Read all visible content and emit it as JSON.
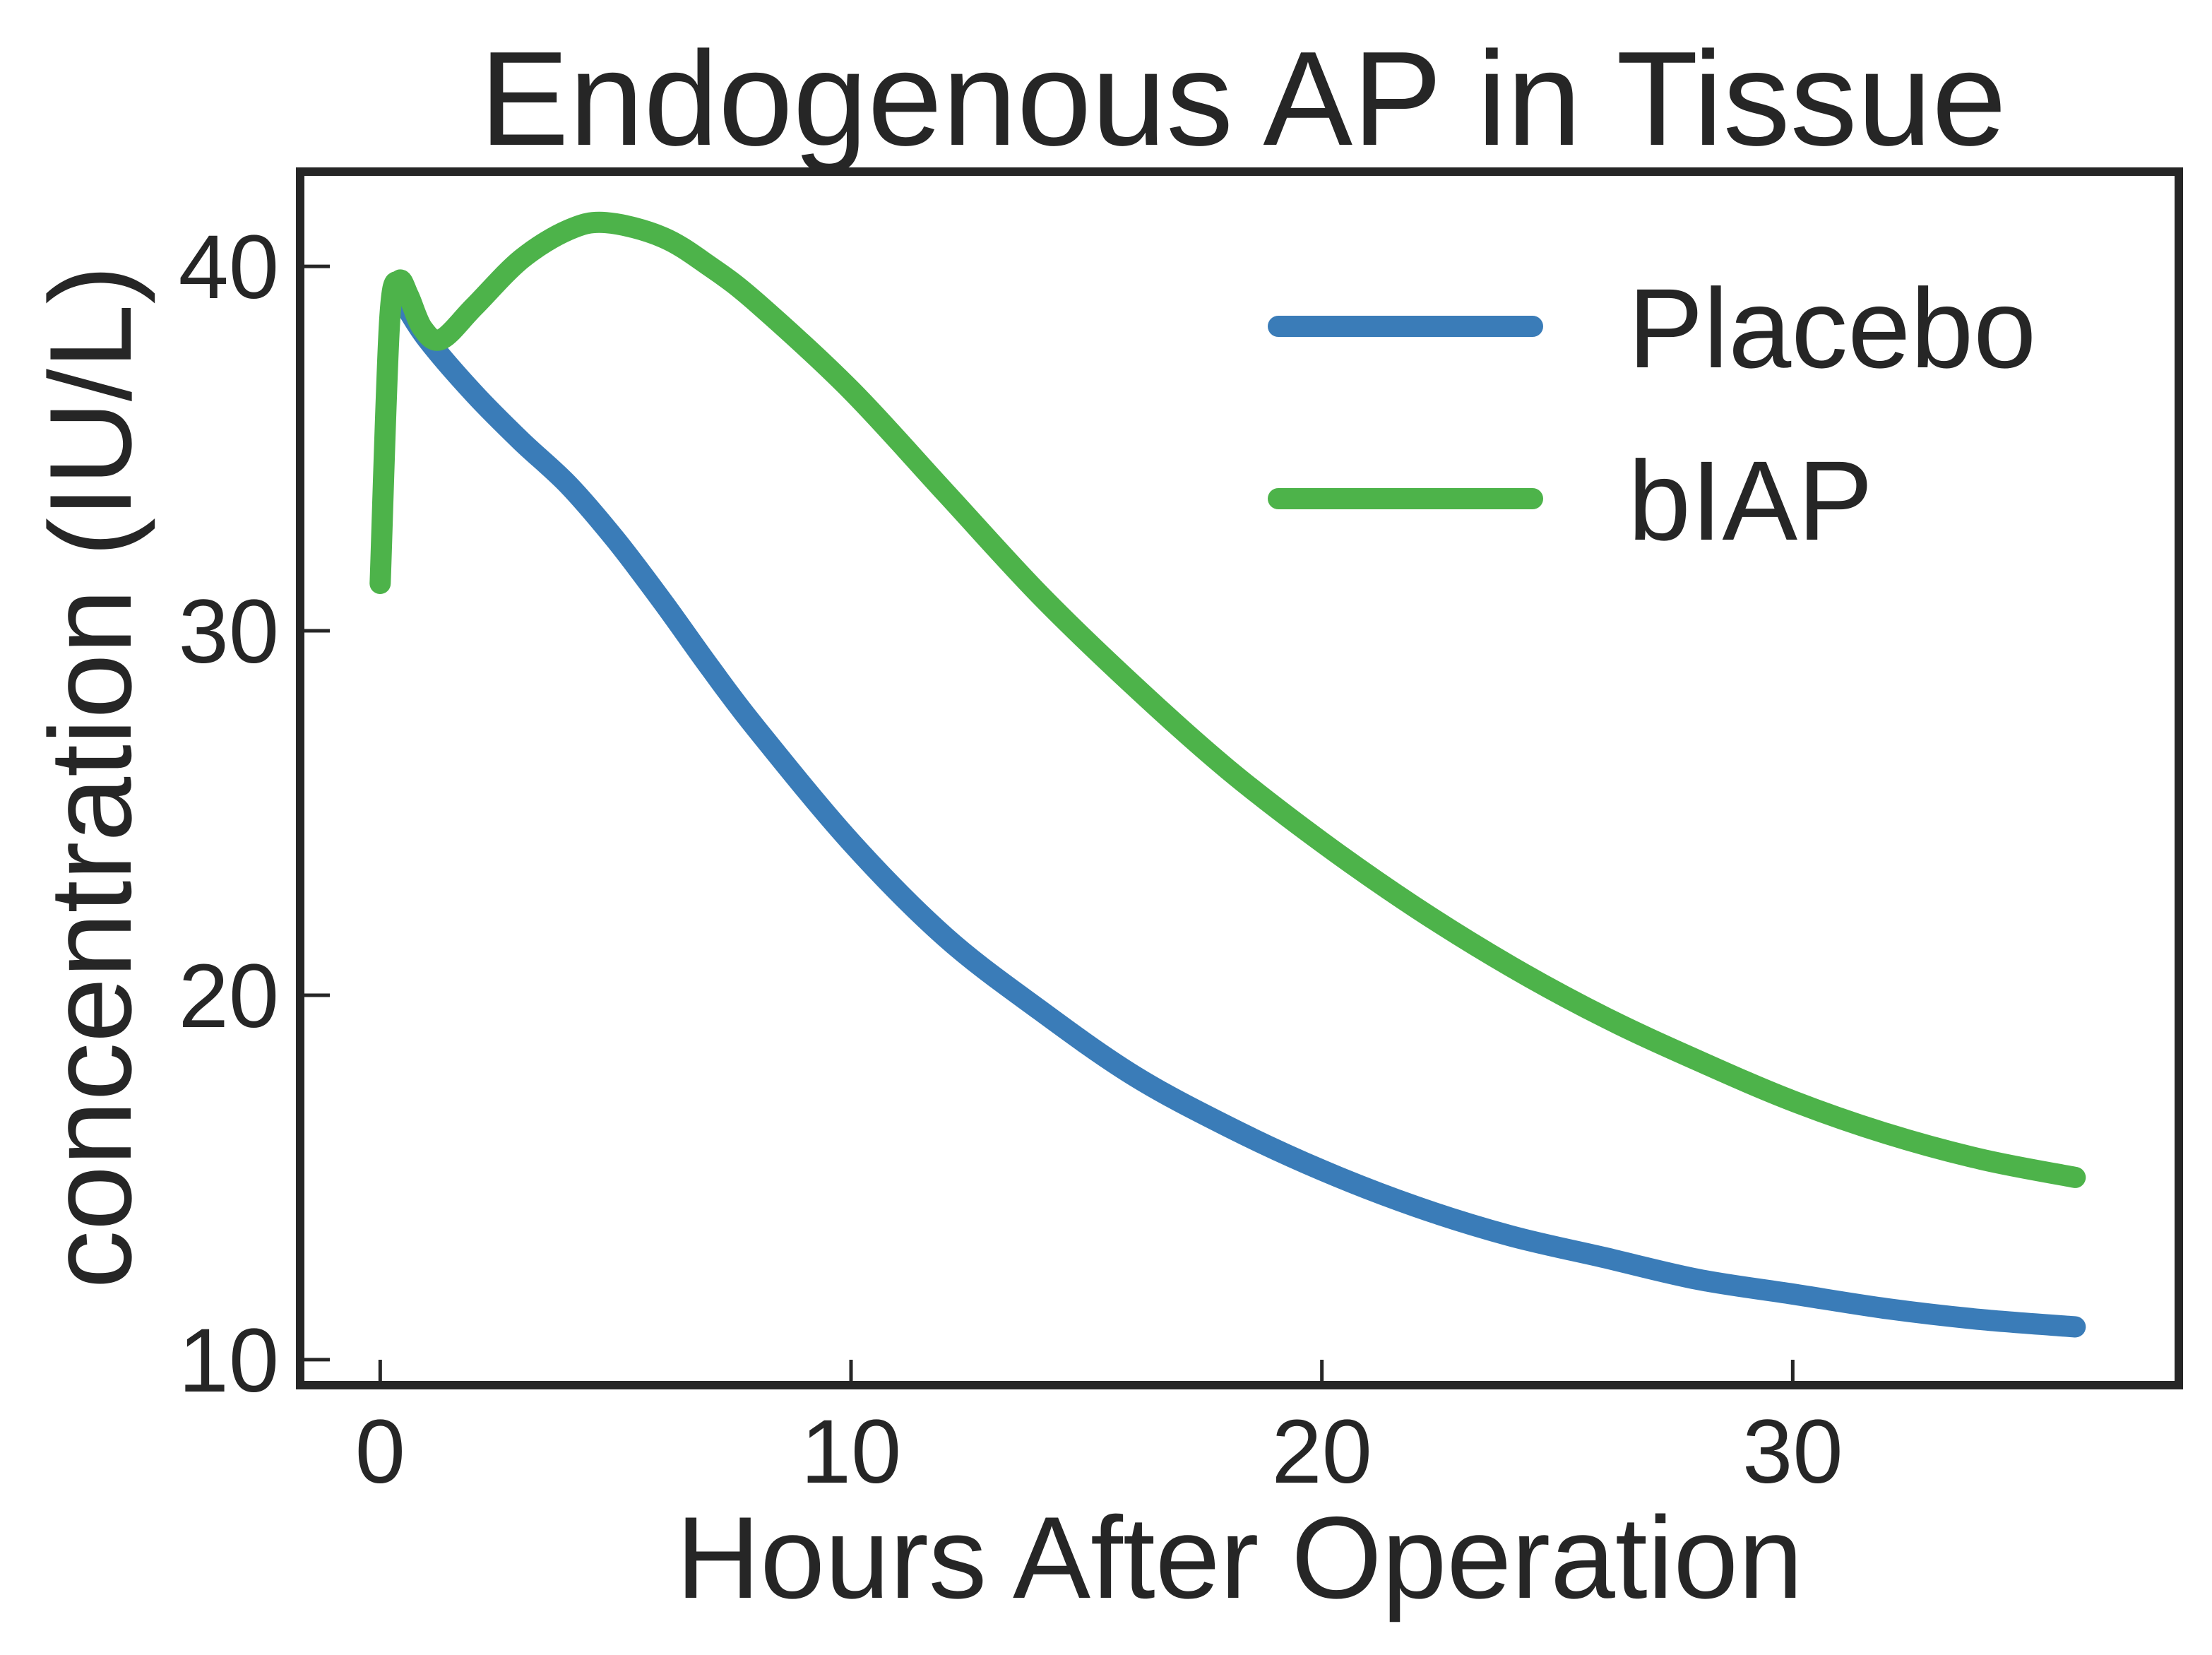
{
  "chart_data": {
    "type": "line",
    "title": "Endogenous AP in Tissue",
    "xlabel": "Hours After Operation",
    "ylabel": "concentration (IU/L)",
    "xlim": [
      -1.7,
      38.2
    ],
    "ylim": [
      9.3,
      42.6
    ],
    "xticks": [
      0,
      10,
      20,
      30
    ],
    "yticks": [
      10,
      20,
      30,
      40
    ],
    "grid": false,
    "legend_position": "top-right",
    "series": [
      {
        "name": "Placebo",
        "color": "#3a7cb8",
        "x": [
          0.5,
          1,
          2,
          3,
          4,
          5,
          6,
          7,
          8,
          10,
          12,
          14,
          16,
          18,
          20,
          22,
          24,
          26,
          28,
          30,
          32,
          34,
          36
        ],
        "y": [
          39.0,
          38.0,
          36.5,
          35.2,
          34.0,
          32.5,
          30.8,
          29.0,
          27.3,
          24.2,
          21.6,
          19.6,
          17.8,
          16.4,
          15.2,
          14.2,
          13.4,
          12.8,
          12.2,
          11.8,
          11.4,
          11.1,
          10.9
        ]
      },
      {
        "name": "bIAP",
        "color": "#4db34a",
        "x": [
          0,
          0.2,
          0.4,
          0.6,
          0.9,
          1.3,
          2,
          3,
          4,
          4.8,
          6,
          7,
          8,
          10,
          12,
          14,
          16,
          18,
          20,
          22,
          24,
          26,
          28,
          30,
          32,
          34,
          36
        ],
        "y": [
          31.3,
          38.5,
          39.6,
          39.2,
          38.3,
          38.0,
          38.9,
          40.2,
          41.0,
          41.2,
          40.8,
          40.0,
          39.0,
          36.6,
          33.8,
          31.0,
          28.5,
          26.2,
          24.2,
          22.4,
          20.8,
          19.4,
          18.2,
          17.1,
          16.2,
          15.5,
          15.0
        ]
      }
    ]
  }
}
